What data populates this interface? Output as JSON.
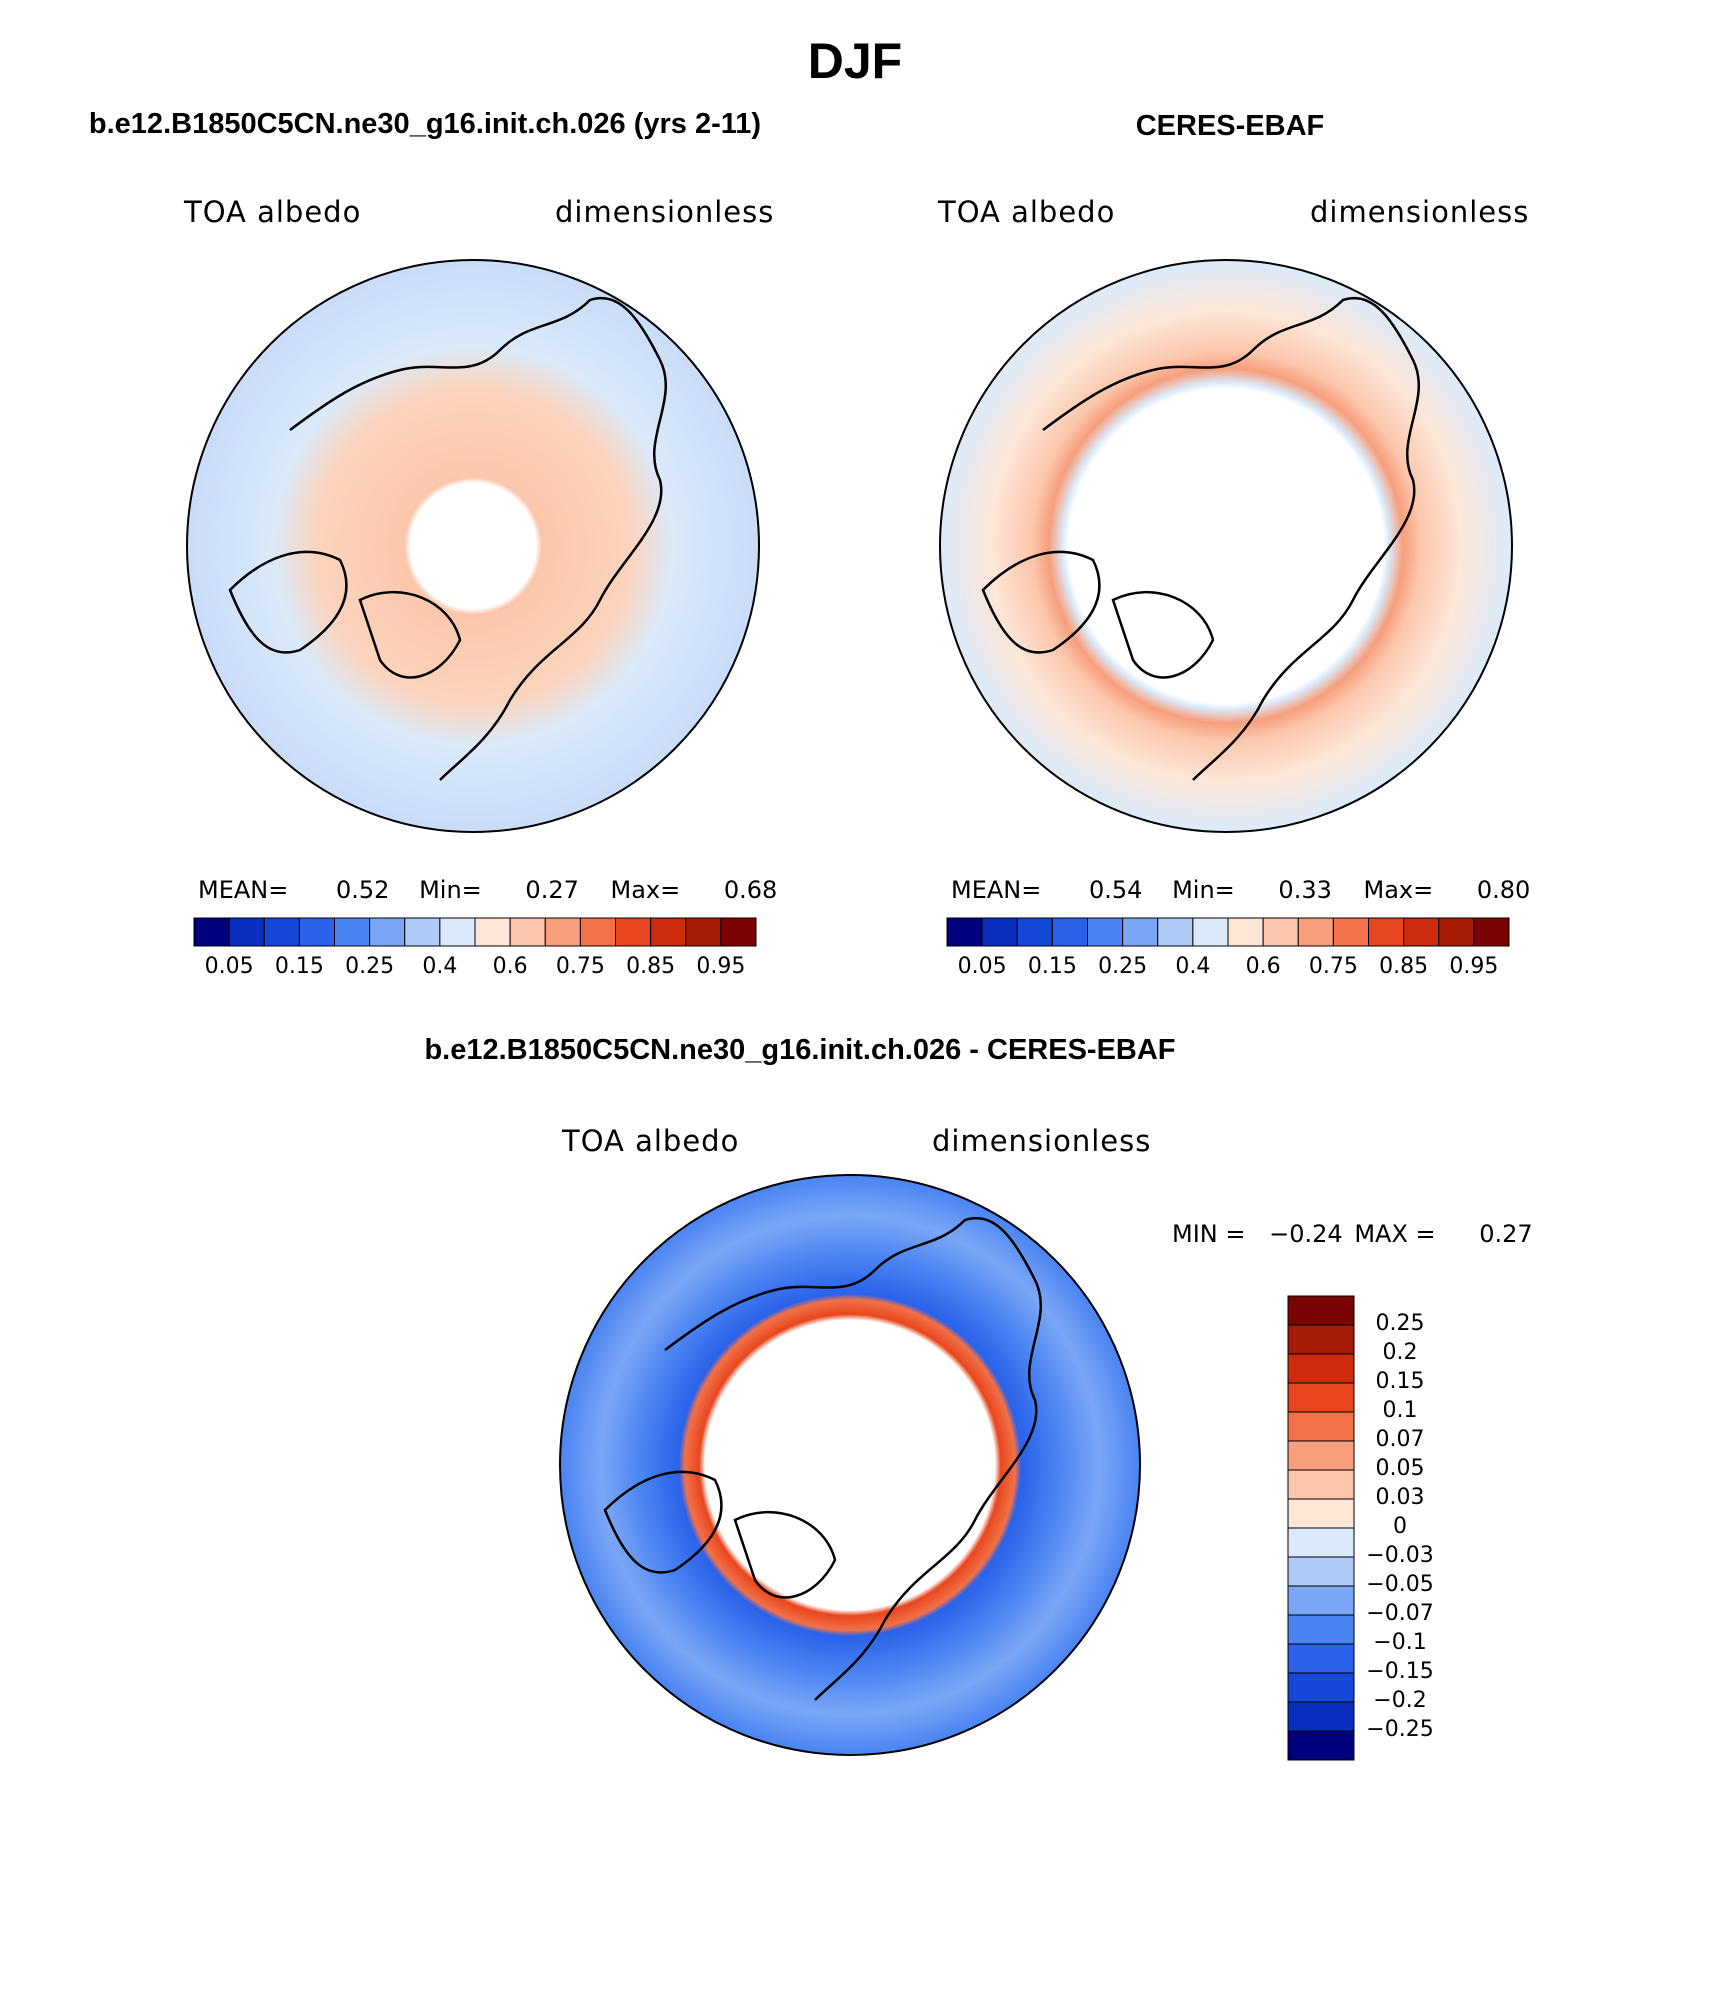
{
  "main_title": "DJF",
  "panels": [
    {
      "title": "b.e12.B1850C5CN.ne30_g16.init.ch.026 (yrs 2-11)",
      "left_label": "TOA albedo",
      "right_label": "dimensionless",
      "stats": {
        "mean_label": "MEAN=",
        "mean": "0.52",
        "min_label": "Min=",
        "min": "0.27",
        "max_label": "Max=",
        "max": "0.68"
      },
      "colorbar_labels": [
        "0.05",
        "0.15",
        "0.25",
        "0.4",
        "0.6",
        "0.75",
        "0.85",
        "0.95"
      ]
    },
    {
      "title": "CERES-EBAF",
      "left_label": "TOA albedo",
      "right_label": "dimensionless",
      "stats": {
        "mean_label": "MEAN=",
        "mean": "0.54",
        "min_label": "Min=",
        "min": "0.33",
        "max_label": "Max=",
        "max": "0.80"
      },
      "colorbar_labels": [
        "0.05",
        "0.15",
        "0.25",
        "0.4",
        "0.6",
        "0.75",
        "0.85",
        "0.95"
      ]
    },
    {
      "title": "b.e12.B1850C5CN.ne30_g16.init.ch.026 - CERES-EBAF",
      "left_label": "TOA albedo",
      "right_label": "dimensionless",
      "stats": {
        "min_label": "MIN =",
        "min": "−0.24",
        "max_label": "MAX =",
        "max": "0.27"
      },
      "colorbar_labels": [
        "0.25",
        "0.2",
        "0.15",
        "0.1",
        "0.07",
        "0.05",
        "0.03",
        "0",
        "−0.03",
        "−0.05",
        "−0.07",
        "−0.1",
        "−0.15",
        "−0.2",
        "−0.25"
      ]
    }
  ],
  "palette": [
    "#00007f",
    "#0a2fbf",
    "#1648d8",
    "#2a62ea",
    "#4a84f2",
    "#7aa6f5",
    "#b0caf7",
    "#dbeafa",
    "#fde6d6",
    "#fbc6ac",
    "#f79e7c",
    "#f27148",
    "#e8461e",
    "#cc2c0c",
    "#a51b06",
    "#7a0403"
  ]
}
